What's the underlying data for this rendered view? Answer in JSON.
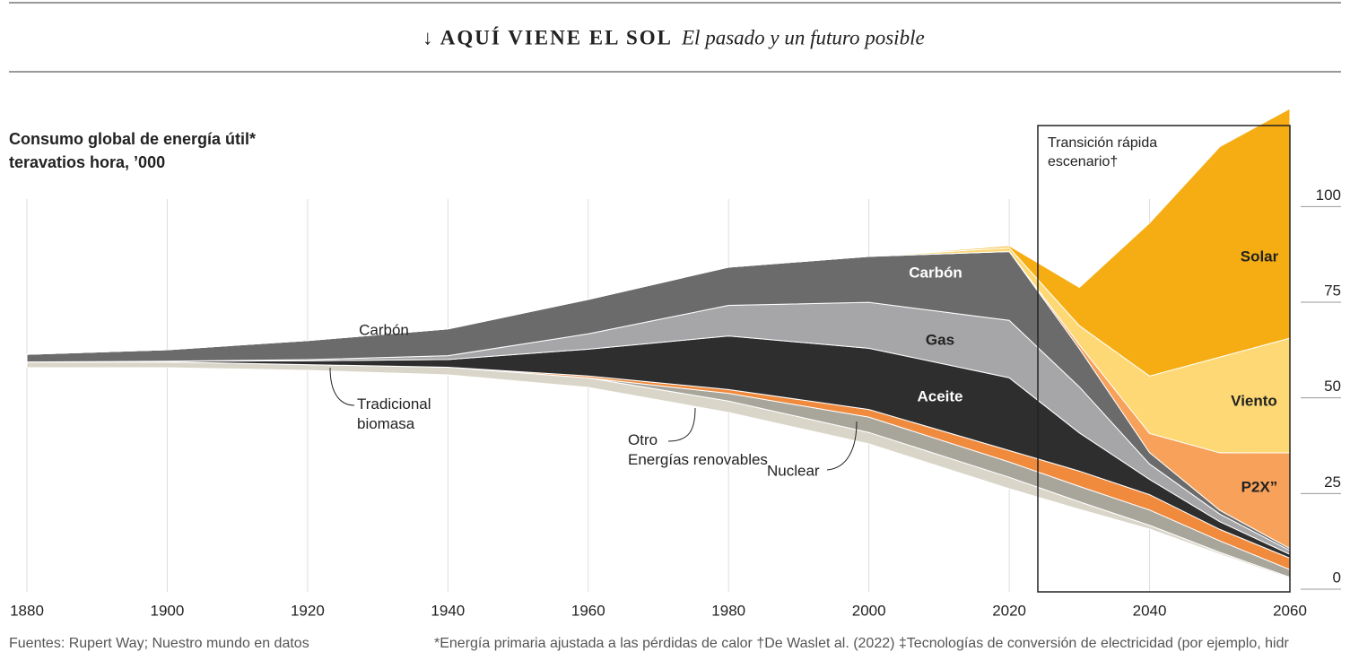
{
  "header": {
    "kicker": "↓ AQUÍ VIENE EL SOL",
    "headline": "El pasado y un futuro posible"
  },
  "chart_data": {
    "type": "stream",
    "title": "Consumo global de energía útil*",
    "subtitle": "teravatios hora, ’000",
    "annotation": "Transición rápida escenario†",
    "x": [
      1880,
      1900,
      1920,
      1940,
      1960,
      1980,
      2000,
      2020,
      2030,
      2040,
      2050,
      2060
    ],
    "xlim": [
      1880,
      2060
    ],
    "xticks": [
      1880,
      1900,
      1920,
      1940,
      1960,
      1980,
      2000,
      2020,
      2040,
      2060
    ],
    "ylim": [
      0,
      120
    ],
    "yticks": [
      0,
      25,
      50,
      75,
      100
    ],
    "grid": true,
    "series": [
      {
        "name": "Tradicional\nbiomasa",
        "color": "#d9d6c9",
        "values": [
          1.5,
          1.5,
          1.5,
          2,
          2.5,
          3,
          3,
          3,
          2,
          1,
          0.5,
          0.3
        ]
      },
      {
        "name": "Nuclear",
        "color": "#a8a59b",
        "values": [
          0,
          0,
          0,
          0,
          0,
          2,
          4,
          4,
          4,
          4,
          3,
          2
        ]
      },
      {
        "name": "Otro\nEnergías renovables",
        "color": "#f08a3c",
        "values": [
          0,
          0,
          0,
          0,
          0.5,
          1,
          2,
          3,
          4,
          4,
          3,
          3
        ]
      },
      {
        "name": "Aceite",
        "color": "#2e2e2e",
        "values": [
          0,
          0.2,
          1,
          2,
          7,
          14,
          16,
          19,
          10,
          4,
          2,
          1
        ]
      },
      {
        "name": "Gas",
        "color": "#a6a6a8",
        "values": [
          0,
          0,
          0.3,
          1,
          4,
          8,
          12,
          15,
          12,
          4,
          2,
          1
        ]
      },
      {
        "name": "Carbón",
        "color": "#6b6b6b",
        "values": [
          2,
          3,
          5,
          7,
          9,
          10,
          12,
          18,
          10,
          3,
          1,
          0.5
        ]
      },
      {
        "name": "P2X”",
        "color": "#f7a15a",
        "values": [
          0,
          0,
          0,
          0,
          0,
          0,
          0,
          0,
          1,
          5,
          15,
          25
        ]
      },
      {
        "name": "Viento",
        "color": "#fdd874",
        "values": [
          0,
          0,
          0,
          0,
          0,
          0,
          0,
          1,
          5,
          15,
          25,
          30
        ]
      },
      {
        "name": "Solar",
        "color": "#f6ad14",
        "values": [
          0,
          0,
          0,
          0,
          0,
          0,
          0,
          0.5,
          10,
          40,
          55,
          60
        ]
      }
    ]
  },
  "footer": {
    "source": "Fuentes: Rupert Way; Nuestro mundo en datos",
    "notes": "*Energía primaria ajustada a las pérdidas de calor †De Waslet al. (2022) ‡Tecnologías de conversión de electricidad (por ejemplo, hidr"
  }
}
